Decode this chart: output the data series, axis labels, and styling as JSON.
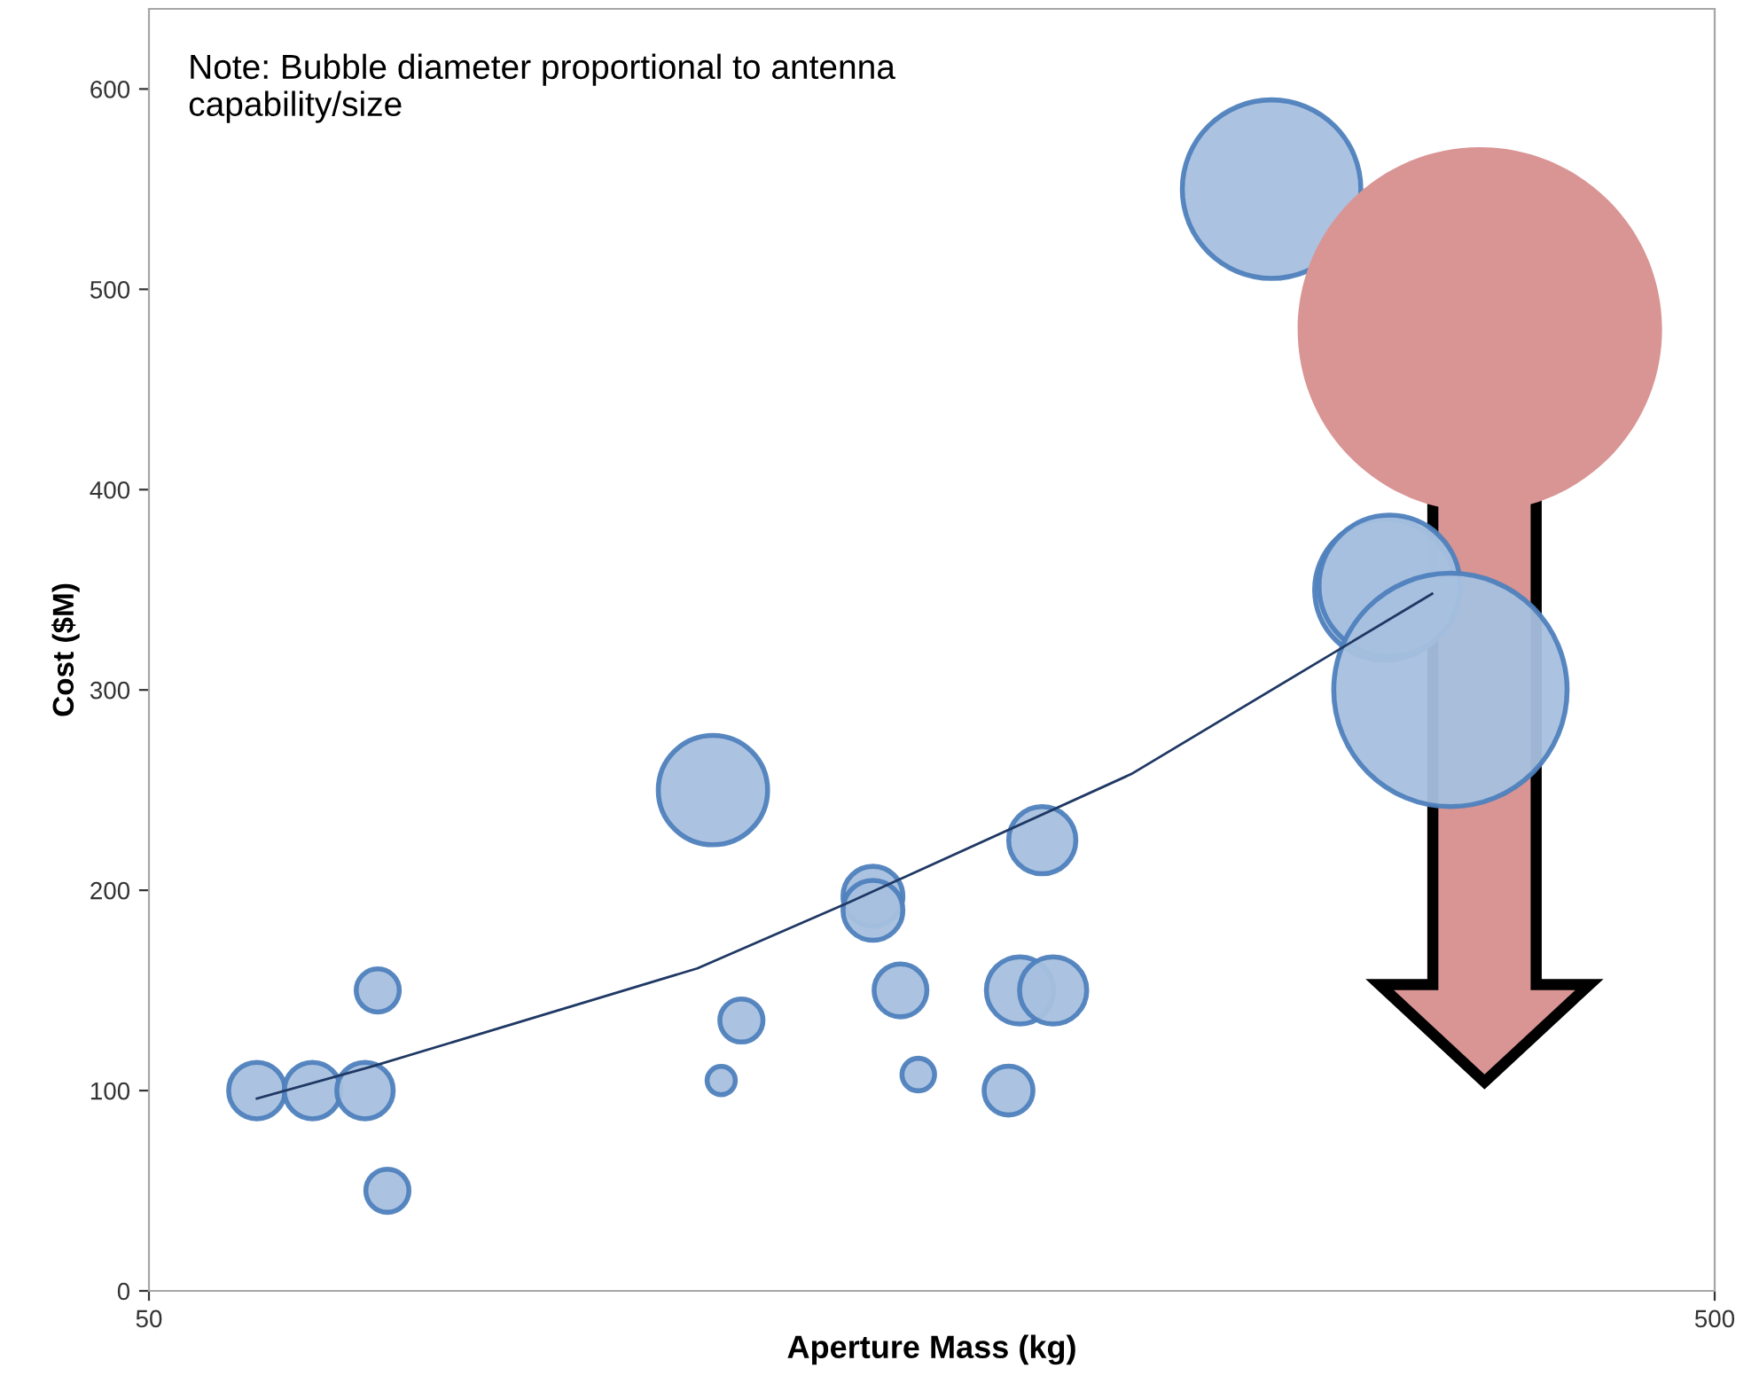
{
  "chart_data": {
    "type": "bubble",
    "xlabel": "Aperture Mass (kg)",
    "ylabel": "Cost ($M)",
    "annotations": [
      "Note: Bubble diameter proportional to antenna capability/size"
    ],
    "log": "x",
    "xlim": [
      50,
      500
    ],
    "xticks": [
      50,
      500
    ],
    "ylim": [
      0,
      640
    ],
    "yticks": [
      0,
      100,
      200,
      300,
      400,
      500,
      600
    ],
    "grid": false,
    "legend": false,
    "series": [
      {
        "color": "#a7c0de",
        "x": [
          58.6,
          63.6,
          68.7,
          70,
          71,
          114.6,
          116,
          119.5,
          145,
          145,
          151,
          155,
          177,
          180,
          189,
          186,
          260.6,
          308,
          310,
          339
        ],
        "values": [
          100,
          100,
          100,
          150,
          50,
          250,
          105,
          135,
          197,
          190,
          150,
          108,
          100,
          150,
          150,
          225,
          550,
          350,
          352,
          300
        ],
        "sizes": [
          0.024,
          0.024,
          0.024,
          0.014,
          0.014,
          0.09,
          0.006,
          0.014,
          0.027,
          0.027,
          0.021,
          0.008,
          0.018,
          0.034,
          0.034,
          0.034,
          0.24,
          0.15,
          0.15,
          0.41
        ]
      },
      {
        "color": "#d99594",
        "x": [
          354
        ],
        "values": [
          480
        ],
        "sizes": [
          1
        ]
      },
      {
        "type": "line",
        "color": "#1f3864",
        "x": [
          58.6,
          69.4,
          112,
          140,
          212,
          330
        ],
        "values": [
          96,
          112,
          161,
          194,
          258,
          348
        ]
      }
    ]
  }
}
